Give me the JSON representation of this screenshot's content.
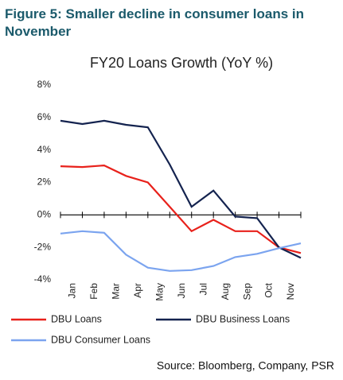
{
  "chart_data": {
    "type": "line",
    "figure_title": "Figure 5:  Smaller decline in consumer loans in November",
    "title": "FY20 Loans Growth (YoY %)",
    "source": "Source: Bloomberg, Company, PSR",
    "categories": [
      null,
      "Jan",
      "Feb",
      "Mar",
      "Apr",
      "May",
      "Jun",
      "Jul",
      "Aug",
      "Sep",
      "Oct",
      "Nov"
    ],
    "series": [
      {
        "name": "DBU Loans",
        "color": "#e8211b",
        "values": [
          3.0,
          2.95,
          3.05,
          2.4,
          2.0,
          0.5,
          -1.0,
          -0.3,
          -1.0,
          -1.0,
          -2.0,
          -2.35
        ]
      },
      {
        "name": "DBU Business Loans",
        "color": "#14234f",
        "values": [
          5.8,
          5.6,
          5.8,
          5.55,
          5.4,
          3.1,
          0.5,
          1.5,
          -0.1,
          -0.2,
          -2.0,
          -2.65
        ]
      },
      {
        "name": "DBU Consumer Loans",
        "color": "#7ba4ef",
        "values": [
          -1.15,
          -1.0,
          -1.1,
          -2.45,
          -3.25,
          -3.45,
          -3.4,
          -3.15,
          -2.6,
          -2.4,
          -2.05,
          -1.75
        ]
      }
    ],
    "ylim": [
      -4,
      8
    ],
    "yticks": [
      {
        "value": -4,
        "label": "-4%"
      },
      {
        "value": -2,
        "label": "-2%"
      },
      {
        "value": 0,
        "label": "0%"
      },
      {
        "value": 2,
        "label": "2%"
      },
      {
        "value": 4,
        "label": "4%"
      },
      {
        "value": 6,
        "label": "6%"
      },
      {
        "value": 8,
        "label": "8%"
      }
    ],
    "grid": false
  }
}
